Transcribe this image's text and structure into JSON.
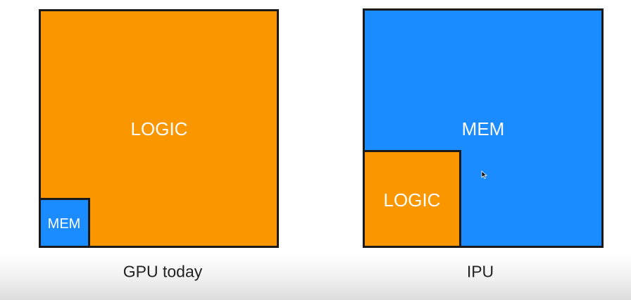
{
  "colors": {
    "logic": "#fa9600",
    "memory": "#1a8cff",
    "border": "#1a1a1a"
  },
  "gpu": {
    "caption": "GPU today",
    "large_block_label": "LOGIC",
    "small_block_label": "MEM"
  },
  "ipu": {
    "caption": "IPU",
    "large_block_label": "MEM",
    "small_block_label": "LOGIC"
  },
  "cursor_icon": "mouse-pointer-icon"
}
